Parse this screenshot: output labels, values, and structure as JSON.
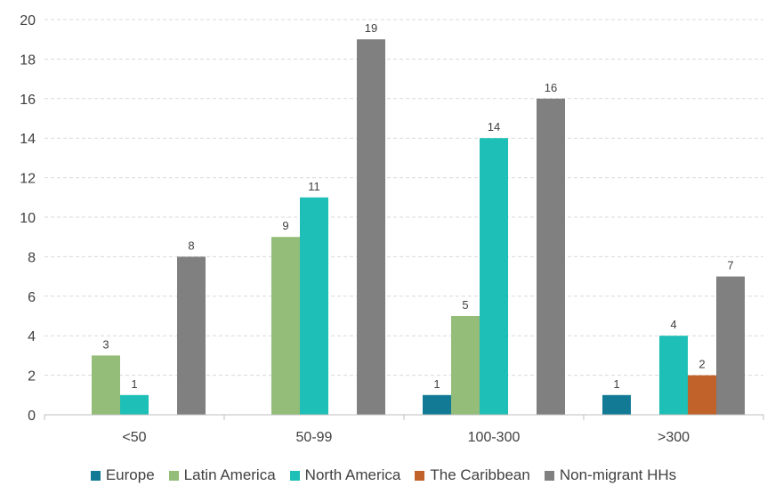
{
  "chart_data": {
    "type": "bar",
    "title": "",
    "xlabel": "",
    "ylabel": "",
    "ylim": [
      0,
      20
    ],
    "yticks": [
      "0",
      "2",
      "4",
      "6",
      "8",
      "10",
      "12",
      "14",
      "16",
      "18",
      "20"
    ],
    "grid": true,
    "legend_position": "bottom",
    "categories": [
      "<50",
      "50-99",
      "100-300",
      ">300"
    ],
    "series": [
      {
        "name": "Europe",
        "color": "#137a96",
        "values": [
          null,
          null,
          1,
          1
        ]
      },
      {
        "name": "Latin America",
        "color": "#93bd78",
        "values": [
          3,
          9,
          5,
          null
        ]
      },
      {
        "name": "North America",
        "color": "#1ebfb6",
        "values": [
          1,
          11,
          14,
          4
        ]
      },
      {
        "name": "The Caribbean",
        "color": "#c0622a",
        "values": [
          null,
          null,
          null,
          2
        ]
      },
      {
        "name": "Non-migrant HHs",
        "color": "#808080",
        "values": [
          8,
          19,
          16,
          7
        ]
      }
    ]
  }
}
